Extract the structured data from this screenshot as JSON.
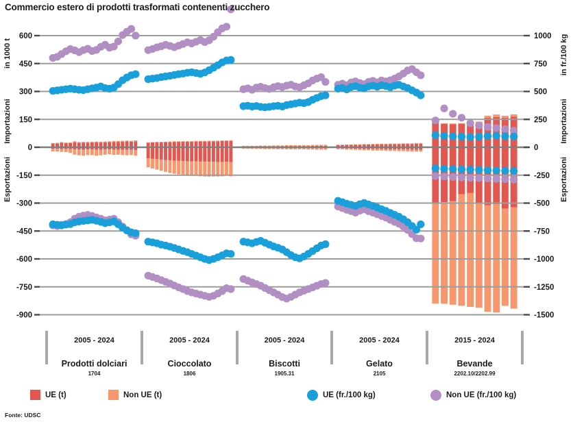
{
  "title": "Commercio estero di prodotti trasformati contenenti zucchero",
  "source": "Fonte: UDSC",
  "colors": {
    "ue_bar": "#e2574f",
    "nonue_bar": "#f6976e",
    "ue_dot": "#19a0da",
    "nonue_dot": "#b18fc3",
    "grid": "#9c9c9c",
    "zero": "#7f7f7f",
    "tick": "#4a4a4a",
    "separator": "#a8a8a8",
    "text": "#1a1a1a"
  },
  "axes": {
    "left": {
      "caption_top": "in 1000 t",
      "caption_upper": "Importazioni",
      "caption_lower": "Esportazioni",
      "ticks": [
        600,
        450,
        300,
        150,
        0,
        -150,
        -300,
        -450,
        -600,
        -750,
        -900
      ]
    },
    "right": {
      "caption_top": "in fr./100 kg",
      "caption_upper": "Importazioni",
      "caption_lower": "Esportazioni",
      "ticks": [
        1000,
        750,
        500,
        250,
        0,
        -250,
        -500,
        -750,
        -1000,
        -1250,
        -1500
      ]
    }
  },
  "legend": [
    {
      "label": "UE (t)",
      "swatch": "square",
      "color": "#e2574f"
    },
    {
      "label": "Non UE (t)",
      "swatch": "square",
      "color": "#f6976e"
    },
    {
      "label": "UE (fr./100 kg)",
      "swatch": "circle",
      "color": "#19a0da"
    },
    {
      "label": "Non UE (fr./100 kg)",
      "swatch": "circle",
      "color": "#b18fc3"
    }
  ],
  "chart_data": {
    "type": "bar",
    "subtype": "stacked-bars-with-scatter-prices",
    "units": {
      "bars": "1000 t (left axis, exports negative)",
      "dots": "fr./100 kg (right axis, export prices negative)"
    },
    "left_axis_range": [
      -900,
      600
    ],
    "right_axis_range": [
      -1500,
      1000
    ],
    "grid": "horizontal gridlines at every tick",
    "groups": [
      {
        "name": "Prodotti dolciari",
        "code": "1704",
        "period": "2005 - 2024",
        "bars": {
          "imp_ue": [
            20,
            21,
            25,
            22,
            23,
            28,
            24,
            25,
            25,
            26,
            27,
            26,
            27,
            28,
            29,
            29,
            30,
            31,
            30,
            32
          ],
          "imp_nonue": [
            3,
            3,
            3,
            3,
            3,
            4,
            4,
            4,
            4,
            4,
            4,
            4,
            4,
            4,
            5,
            5,
            5,
            5,
            5,
            5
          ],
          "exp_ue": [
            -8,
            -8,
            -9,
            -9,
            -10,
            -12,
            -12,
            -13,
            -12,
            -12,
            -13,
            -13,
            -12,
            -12,
            -13,
            -13,
            -14,
            -14,
            -14,
            -15
          ],
          "exp_nonue": [
            -14,
            -15,
            -16,
            -17,
            -20,
            -28,
            -31,
            -32,
            -30,
            -30,
            -32,
            -30,
            -28,
            -26,
            -28,
            -27,
            -28,
            -29,
            -28,
            -30
          ]
        },
        "dots": {
          "imp_ue_price": [
            505,
            510,
            515,
            520,
            525,
            520,
            515,
            512,
            520,
            528,
            535,
            545,
            530,
            525,
            535,
            565,
            600,
            625,
            645,
            655
          ],
          "imp_nonue_price": [
            800,
            810,
            835,
            860,
            880,
            868,
            852,
            870,
            882,
            862,
            872,
            900,
            918,
            892,
            902,
            948,
            1005,
            1035,
            1060,
            1000
          ],
          "exp_ue_price": [
            -690,
            -695,
            -700,
            -692,
            -688,
            -672,
            -665,
            -660,
            -655,
            -650,
            -658,
            -668,
            -680,
            -672,
            -664,
            -690,
            -720,
            -745,
            -762,
            -770
          ],
          "exp_nonue_price": [
            -700,
            -706,
            -695,
            -688,
            -672,
            -640,
            -622,
            -612,
            -606,
            -615,
            -628,
            -640,
            -655,
            -648,
            -640,
            -672,
            -710,
            -742,
            -780,
            -792
          ]
        }
      },
      {
        "name": "Cioccolato",
        "code": "1806",
        "period": "2005 - 2024",
        "bars": {
          "imp_ue": [
            25,
            26,
            27,
            27,
            28,
            28,
            29,
            29,
            30,
            30,
            30,
            31,
            31,
            31,
            32,
            32,
            32,
            33,
            33,
            34
          ],
          "imp_nonue": [
            2,
            2,
            2,
            2,
            2,
            3,
            3,
            3,
            3,
            3,
            3,
            3,
            3,
            3,
            3,
            3,
            4,
            4,
            4,
            4
          ],
          "exp_ue": [
            -60,
            -62,
            -64,
            -66,
            -68,
            -70,
            -72,
            -73,
            -74,
            -75,
            -76,
            -76,
            -77,
            -77,
            -78,
            -78,
            -79,
            -79,
            -78,
            -80
          ],
          "exp_nonue": [
            -48,
            -52,
            -56,
            -60,
            -64,
            -68,
            -70,
            -72,
            -74,
            -76,
            -78,
            -78,
            -79,
            -80,
            -80,
            -79,
            -78,
            -77,
            -74,
            -76
          ]
        },
        "dots": {
          "imp_ue_price": [
            610,
            615,
            620,
            628,
            635,
            640,
            648,
            655,
            660,
            668,
            672,
            665,
            658,
            670,
            690,
            712,
            735,
            760,
            778,
            782
          ],
          "imp_nonue_price": [
            870,
            880,
            895,
            905,
            918,
            908,
            896,
            910,
            925,
            940,
            930,
            945,
            960,
            942,
            958,
            990,
            1030,
            1065,
            1080,
            1235
          ],
          "exp_ue_price": [
            -845,
            -852,
            -860,
            -872,
            -880,
            -890,
            -902,
            -915,
            -928,
            -940,
            -955,
            -970,
            -985,
            -1000,
            -1010,
            -1000,
            -985,
            -968,
            -950,
            -955
          ],
          "exp_nonue_price": [
            -1150,
            -1162,
            -1175,
            -1190,
            -1205,
            -1220,
            -1238,
            -1255,
            -1270,
            -1288,
            -1300,
            -1310,
            -1320,
            -1330,
            -1340,
            -1330,
            -1310,
            -1288,
            -1262,
            -1270
          ]
        }
      },
      {
        "name": "Biscotti",
        "code": "1905.31",
        "period": "2005 - 2024",
        "bars": {
          "imp_ue": [
            5,
            5,
            5,
            5,
            6,
            6,
            6,
            6,
            6,
            6,
            7,
            7,
            7,
            7,
            7,
            7,
            8,
            8,
            8,
            8
          ],
          "imp_nonue": [
            3,
            3,
            3,
            3,
            3,
            3,
            3,
            4,
            4,
            4,
            4,
            4,
            4,
            4,
            4,
            4,
            5,
            5,
            5,
            5
          ],
          "exp_ue": [
            -4,
            -4,
            -4,
            -4,
            -4,
            -5,
            -5,
            -5,
            -5,
            -5,
            -5,
            -5,
            -5,
            -5,
            -5,
            -6,
            -6,
            -6,
            -6,
            -6
          ],
          "exp_nonue": [
            -4,
            -4,
            -5,
            -5,
            -5,
            -5,
            -5,
            -5,
            -6,
            -6,
            -6,
            -6,
            -6,
            -6,
            -6,
            -6,
            -6,
            -7,
            -7,
            -7
          ]
        },
        "dots": {
          "imp_ue_price": [
            368,
            372,
            365,
            370,
            362,
            358,
            362,
            368,
            372,
            365,
            378,
            385,
            392,
            400,
            395,
            405,
            425,
            442,
            458,
            465
          ],
          "imp_nonue_price": [
            520,
            528,
            515,
            535,
            542,
            530,
            522,
            538,
            548,
            540,
            552,
            560,
            545,
            538,
            555,
            572,
            598,
            615,
            628,
            585
          ],
          "exp_ue_price": [
            -845,
            -852,
            -860,
            -848,
            -838,
            -855,
            -872,
            -888,
            -900,
            -915,
            -940,
            -965,
            -985,
            -995,
            -978,
            -955,
            -930,
            -905,
            -880,
            -868
          ],
          "exp_nonue_price": [
            -1180,
            -1195,
            -1210,
            -1225,
            -1240,
            -1260,
            -1280,
            -1300,
            -1320,
            -1342,
            -1355,
            -1340,
            -1320,
            -1300,
            -1285,
            -1270,
            -1255,
            -1240,
            -1225,
            -1215
          ]
        }
      },
      {
        "name": "Gelato",
        "code": "2105",
        "period": "2005 - 2024",
        "bars": {
          "imp_ue": [
            12,
            12,
            13,
            13,
            14,
            14,
            15,
            15,
            15,
            16,
            16,
            16,
            17,
            17,
            17,
            18,
            18,
            18,
            19,
            19
          ],
          "imp_nonue": [
            2,
            2,
            2,
            2,
            2,
            2,
            2,
            2,
            3,
            3,
            3,
            3,
            3,
            3,
            3,
            3,
            3,
            3,
            4,
            4
          ],
          "exp_ue": [
            -6,
            -6,
            -7,
            -7,
            -8,
            -8,
            -9,
            -9,
            -10,
            -10,
            -10,
            -11,
            -11,
            -11,
            -12,
            -12,
            -12,
            -13,
            -13,
            -13
          ],
          "exp_nonue": [
            -5,
            -5,
            -6,
            -6,
            -6,
            -7,
            -7,
            -7,
            -8,
            -8,
            -8,
            -8,
            -9,
            -9,
            -9,
            -9,
            -10,
            -10,
            -10,
            -10
          ]
        },
        "dots": {
          "imp_ue_price": [
            525,
            532,
            518,
            540,
            548,
            535,
            528,
            545,
            552,
            542,
            555,
            548,
            538,
            552,
            560,
            545,
            530,
            510,
            490,
            465
          ],
          "imp_nonue_price": [
            560,
            570,
            555,
            580,
            590,
            575,
            565,
            585,
            595,
            582,
            598,
            590,
            600,
            615,
            635,
            660,
            688,
            700,
            672,
            645
          ],
          "exp_ue_price": [
            -480,
            -492,
            -505,
            -515,
            -525,
            -510,
            -498,
            -512,
            -525,
            -540,
            -555,
            -570,
            -588,
            -605,
            -622,
            -645,
            -672,
            -705,
            -738,
            -690
          ],
          "exp_nonue_price": [
            -530,
            -545,
            -560,
            -572,
            -585,
            -568,
            -556,
            -572,
            -585,
            -600,
            -615,
            -630,
            -650,
            -668,
            -685,
            -710,
            -740,
            -778,
            -815,
            -817
          ]
        }
      },
      {
        "name": "Bevande",
        "code": "2202.10/2202.99",
        "period": "2015 - 2024",
        "bars": {
          "imp_ue": [
            150,
            125,
            124,
            126,
            125,
            132,
            158,
            162,
            158,
            164
          ],
          "imp_nonue": [
            6,
            4,
            4,
            4,
            4,
            6,
            12,
            14,
            11,
            13
          ],
          "exp_ue": [
            -300,
            -295,
            -290,
            -252,
            -246,
            -300,
            -312,
            -306,
            -330,
            -322
          ],
          "exp_nonue": [
            -540,
            -546,
            -556,
            -600,
            -612,
            -562,
            -572,
            -582,
            -522,
            -545
          ]
        },
        "dots": {
          "imp_ue_price": [
            108,
            102,
            98,
            95,
            92,
            95,
            100,
            104,
            98,
            96
          ],
          "imp_nonue_price": [
            240,
            348,
            300,
            265,
            215,
            195,
            182,
            172,
            162,
            150
          ],
          "exp_ue_price": [
            -188,
            -192,
            -195,
            -198,
            -200,
            -202,
            -205,
            -208,
            -210,
            -212
          ],
          "exp_nonue_price": [
            -258,
            -262,
            -266,
            -270,
            -274,
            -276,
            -280,
            -284,
            -286,
            -290
          ]
        }
      }
    ]
  }
}
